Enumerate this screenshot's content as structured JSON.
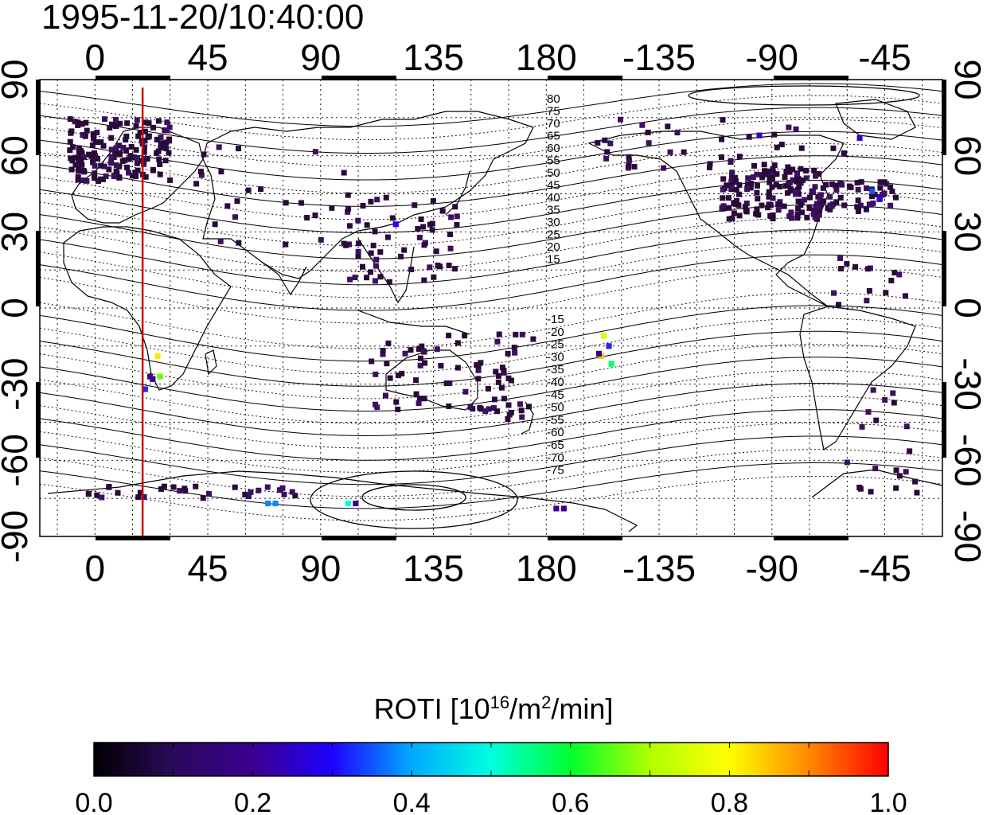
{
  "timestamp": "1995-11-20/10:40:00",
  "map": {
    "lon_ticks_top": [
      "0",
      "45",
      "90",
      "135",
      "180",
      "-135",
      "-90",
      "-45"
    ],
    "lon_ticks_bottom": [
      "0",
      "45",
      "90",
      "135",
      "180",
      "-135",
      "-90",
      "-45"
    ],
    "lat_ticks_left": [
      "90",
      "60",
      "30",
      "0",
      "-30",
      "-60",
      "-90"
    ],
    "lat_ticks_right": [
      "90",
      "60",
      "30",
      "0",
      "-30",
      "-60",
      "-90"
    ],
    "map_range_lon": [
      -22,
      338
    ],
    "map_range_lat": [
      -90,
      90
    ],
    "terminator_lon": 19,
    "terminator_color": "#cc0000",
    "magnetic_latitude_labels_north": [
      "80",
      "75",
      "70",
      "65",
      "60",
      "55",
      "50",
      "45",
      "40",
      "35",
      "30",
      "25",
      "20",
      "15"
    ],
    "magnetic_latitude_labels_south": [
      "-15",
      "-20",
      "-25",
      "-30",
      "-35",
      "-40",
      "-45",
      "-50",
      "-55",
      "-60",
      "-65",
      "-70",
      "-75"
    ],
    "grid": true,
    "roti_points": [
      {
        "lon": 22,
        "lat": -27,
        "v": 0.18
      },
      {
        "lon": 23,
        "lat": -28,
        "v": 0.2
      },
      {
        "lon": 25,
        "lat": -19,
        "v": 0.82
      },
      {
        "lon": 26,
        "lat": -27,
        "v": 0.65
      },
      {
        "lon": 20,
        "lat": -32,
        "v": 0.32
      },
      {
        "lon": 203,
        "lat": -11,
        "v": 0.72
      },
      {
        "lon": 205,
        "lat": -15,
        "v": 0.32
      },
      {
        "lon": 202,
        "lat": -19,
        "v": 0.85
      },
      {
        "lon": 206,
        "lat": -22,
        "v": 0.55
      },
      {
        "lon": 201,
        "lat": -18,
        "v": 0.2
      },
      {
        "lon": 69,
        "lat": -77,
        "v": 0.38
      },
      {
        "lon": 72,
        "lat": -77,
        "v": 0.38
      },
      {
        "lon": 101,
        "lat": -77,
        "v": 0.5
      },
      {
        "lon": 104,
        "lat": -77,
        "v": 0.22
      },
      {
        "lon": 184,
        "lat": -79,
        "v": 0.22
      },
      {
        "lon": 187,
        "lat": -79,
        "v": 0.22
      },
      {
        "lon": 310,
        "lat": 46,
        "v": 0.35
      },
      {
        "lon": 313,
        "lat": 43,
        "v": 0.28
      },
      {
        "lon": 265,
        "lat": 68,
        "v": 0.25
      },
      {
        "lon": 305,
        "lat": 67,
        "v": 0.25
      },
      {
        "lon": 120,
        "lat": 33,
        "v": 0.28
      }
    ],
    "grid_lines_color": "#000000"
  },
  "colorbar": {
    "title_main": "ROTI  [10",
    "title_sup1": "16",
    "title_mid": "/m",
    "title_sup2": "2",
    "title_end": "/min]",
    "tick_labels": [
      "0.0",
      "0.2",
      "0.4",
      "0.6",
      "0.8",
      "1.0"
    ],
    "range": [
      0,
      1
    ],
    "stops": [
      "#000000",
      "#2a0a5a",
      "#3b0080",
      "#3000ff",
      "#00aaff",
      "#00ffd0",
      "#00ff00",
      "#c8ff00",
      "#ffff00",
      "#ff8800",
      "#ff0000"
    ]
  }
}
